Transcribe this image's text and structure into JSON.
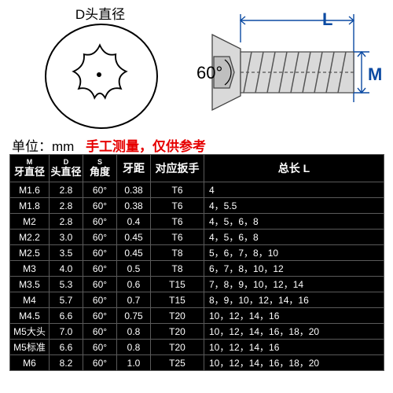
{
  "diagram": {
    "d_label": "D头直径",
    "l_label": "L",
    "m_label": "M",
    "angle_label": "60°",
    "colors": {
      "stroke": "#000000",
      "dim_blue": "#0b4aa2",
      "screw_fill": "#d9d9d9",
      "screw_stroke": "#444444"
    }
  },
  "unit_line": {
    "label": "单位：",
    "value": "mm",
    "note": "手工测量，仅供参考"
  },
  "table": {
    "columns": [
      {
        "sub": "M",
        "main": "牙直径"
      },
      {
        "sub": "D",
        "main": "头直径"
      },
      {
        "sub": "S",
        "main": "角度"
      },
      {
        "sub": "",
        "main": "牙距"
      },
      {
        "sub": "",
        "main": "对应扳手"
      },
      {
        "sub": "",
        "main": "总长 L"
      }
    ],
    "rows": [
      [
        "M1.6",
        "2.8",
        "60°",
        "0.38",
        "T6",
        "4"
      ],
      [
        "M1.8",
        "2.8",
        "60°",
        "0.38",
        "T6",
        "4，5.5"
      ],
      [
        "M2",
        "2.8",
        "60°",
        "0.4",
        "T6",
        "4，5，6，8"
      ],
      [
        "M2.2",
        "3.0",
        "60°",
        "0.45",
        "T6",
        "4，5，6，8"
      ],
      [
        "M2.5",
        "3.5",
        "60°",
        "0.45",
        "T8",
        "5，6，7，8，10"
      ],
      [
        "M3",
        "4.0",
        "60°",
        "0.5",
        "T8",
        "6，7，8，10，12"
      ],
      [
        "M3.5",
        "5.3",
        "60°",
        "0.6",
        "T15",
        "7，8，9，10，12，14"
      ],
      [
        "M4",
        "5.7",
        "60°",
        "0.7",
        "T15",
        "8，9，10，12，14，16"
      ],
      [
        "M4.5",
        "6.6",
        "60°",
        "0.75",
        "T20",
        "10，12，14，16"
      ],
      [
        "M5大头",
        "7.0",
        "60°",
        "0.8",
        "T20",
        "10，12，14，16，18，20"
      ],
      [
        "M5标准",
        "6.6",
        "60°",
        "0.8",
        "T20",
        "10，12，14，16"
      ],
      [
        "M6",
        "8.2",
        "60°",
        "1.0",
        "T25",
        "10，12，14，16，18，20"
      ]
    ],
    "style": {
      "header_bg": "#000000",
      "cell_bg": "#000000",
      "text_color": "#ffffff",
      "border_color": "#5a5a5a",
      "font_size_header": 13,
      "font_size_cell": 12
    }
  }
}
